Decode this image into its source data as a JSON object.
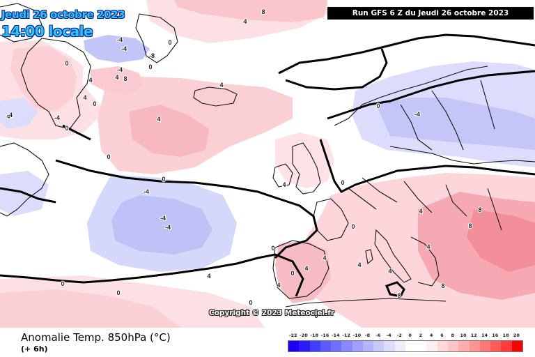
{
  "map": {
    "title_date": "Jeudi 26 octobre 2023",
    "title_time": "14:00 locale",
    "run_info": "Run GFS 6 Z du Jeudi 26 octobre 2023",
    "copyright": "Copyright © 2023 Meteociel.fr",
    "variable_title": "Anomalie Temp. 850hPa (°C)",
    "forecast_step": "(+ 6h)",
    "contour_labels": [
      {
        "text": "8"
      },
      {
        "text": "4"
      },
      {
        "text": "0"
      },
      {
        "text": "-4"
      },
      {
        "text": "-4"
      },
      {
        "text": "4"
      },
      {
        "text": "4"
      },
      {
        "text": "8"
      },
      {
        "text": "0"
      },
      {
        "text": "4"
      },
      {
        "text": "0"
      },
      {
        "text": "0"
      },
      {
        "text": "-4"
      },
      {
        "text": "0"
      },
      {
        "text": "4"
      },
      {
        "text": "-4"
      },
      {
        "text": "-4"
      },
      {
        "text": "-4"
      },
      {
        "text": "0"
      },
      {
        "text": "4"
      },
      {
        "text": "4"
      },
      {
        "text": "-4"
      },
      {
        "text": "0"
      },
      {
        "text": "-8"
      },
      {
        "text": "-4"
      },
      {
        "text": "0"
      },
      {
        "text": "-4"
      },
      {
        "text": "0"
      },
      {
        "text": "4"
      },
      {
        "text": "0"
      },
      {
        "text": "8"
      },
      {
        "text": "8"
      },
      {
        "text": "4"
      },
      {
        "text": "8"
      },
      {
        "text": "4"
      },
      {
        "text": "8"
      },
      {
        "text": "0"
      },
      {
        "text": "4"
      },
      {
        "text": "4"
      },
      {
        "text": "4"
      },
      {
        "text": "0"
      },
      {
        "text": "4"
      },
      {
        "text": "0"
      },
      {
        "text": "4"
      },
      {
        "text": "0"
      },
      {
        "text": "4"
      },
      {
        "text": "0"
      },
      {
        "text": "0"
      }
    ]
  },
  "legend": {
    "labels": [
      "-22",
      "-20",
      "-18",
      "-16",
      "-14",
      "-12",
      "-10",
      "-8",
      "-6",
      "-4",
      "-2",
      "0",
      "2",
      "4",
      "6",
      "8",
      "10",
      "12",
      "14",
      "16",
      "18",
      "20"
    ],
    "colors": [
      "#1a00f5",
      "#2a1bff",
      "#4040ff",
      "#5a5aff",
      "#7070ff",
      "#8888ff",
      "#a0a0ff",
      "#b4b4fa",
      "#c8c8fa",
      "#dcdcfc",
      "#eeeefe",
      "#ffffff",
      "#ffffff",
      "#fff0f0",
      "#ffdada",
      "#ffc4c4",
      "#ffadad",
      "#ff9494",
      "#ff7878",
      "#ff5c5c",
      "#ff3a3a",
      "#ff0000"
    ]
  }
}
